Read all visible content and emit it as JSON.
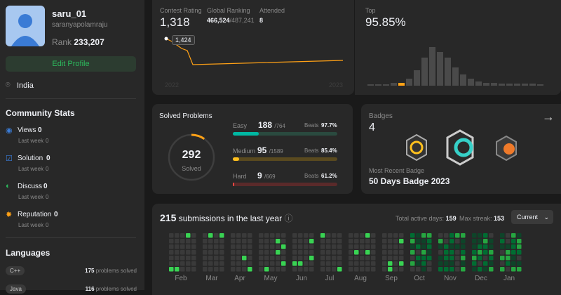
{
  "profile": {
    "username": "saru_01",
    "handle": "saranyapolamraju",
    "rank_label": "Rank",
    "rank": "233,207",
    "edit": "Edit Profile",
    "location": "India"
  },
  "community": {
    "title": "Community Stats",
    "items": [
      {
        "label": "Views",
        "value": 0,
        "sub_label": "Last week",
        "sub_value": 0
      },
      {
        "label": "Solution",
        "value": 0,
        "sub_label": "Last week",
        "sub_value": 0
      },
      {
        "label": "Discuss",
        "value": 0,
        "sub_label": "Last week",
        "sub_value": 0
      },
      {
        "label": "Reputation",
        "value": 0,
        "sub_label": "Last week",
        "sub_value": 0
      }
    ]
  },
  "languages": {
    "title": "Languages",
    "items": [
      {
        "name": "C++",
        "solved": 175,
        "unit": "problems solved"
      },
      {
        "name": "Java",
        "solved": 116,
        "unit": "problems solved"
      }
    ]
  },
  "contest": {
    "rating_label": "Contest Rating",
    "rating": "1,318",
    "global_label": "Global Ranking",
    "global": "466,524",
    "global_total": "/487,241",
    "attended_label": "Attended",
    "attended": 8,
    "tooltip": "1,424",
    "x_start": "2022",
    "x_end": "2023",
    "top_label": "Top",
    "top": "95.85%"
  },
  "solved": {
    "title": "Solved Problems",
    "total": 292,
    "total_label": "Solved",
    "beats_label": "Beats",
    "levels": [
      {
        "name": "Easy",
        "solved": 188,
        "total": {
          "value": 764,
          "label": "/764"
        },
        "beats": "97.7%",
        "color": "#00b8a3",
        "track": "#2a4a3f"
      },
      {
        "name": "Medium",
        "solved": 95,
        "total": {
          "value": 1589,
          "label": "/1589"
        },
        "beats": "85.4%",
        "color": "#ffc01e",
        "track": "#5a4a1f"
      },
      {
        "name": "Hard",
        "solved": 9,
        "total": {
          "value": 669,
          "label": "/669"
        },
        "beats": "61.2%",
        "color": "#ef4743",
        "track": "#5a2a2a"
      }
    ]
  },
  "badges": {
    "title": "Badges",
    "count": 4,
    "recent_label": "Most Recent Badge",
    "recent": "50 Days Badge 2023"
  },
  "submissions": {
    "count": 215,
    "label": "submissions in the last year",
    "active_label": "Total active days:",
    "active": 159,
    "streak_label": "Max streak:",
    "streak": 153,
    "select": "Current",
    "months": [
      "Feb",
      "Mar",
      "Apr",
      "May",
      "Jun",
      "Jul",
      "Aug",
      "Sep",
      "Oct",
      "Nov",
      "Dec",
      "Jan"
    ]
  }
}
